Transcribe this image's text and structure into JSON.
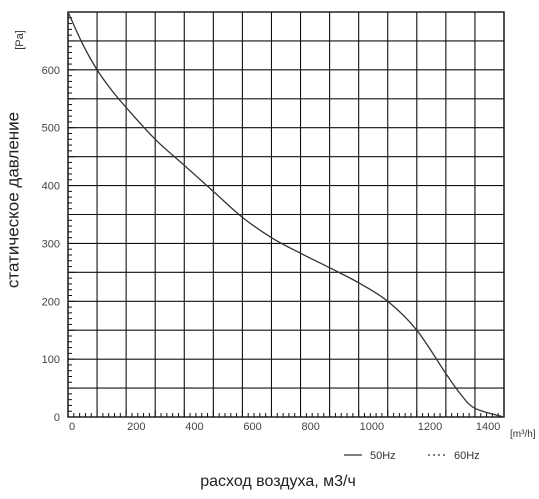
{
  "chart_data": {
    "type": "line",
    "ylabel": "статическое давление",
    "xlabel": "расход воздуха, м3/ч",
    "y_unit": "[Pa]",
    "x_unit": "[m³/h]",
    "xlim": [
      0,
      1500
    ],
    "ylim": [
      0,
      700
    ],
    "x_ticks": [
      0,
      200,
      400,
      600,
      800,
      1000,
      1200,
      1400
    ],
    "y_ticks": [
      0,
      100,
      200,
      300,
      400,
      500,
      600
    ],
    "x_gridlines_every": 100,
    "y_gridlines_every": 50,
    "grid": true,
    "legend_position": "bottom-right",
    "legend": [
      "50Hz",
      "60Hz"
    ],
    "series": [
      {
        "name": "50Hz",
        "line_style": "solid",
        "color": "#333333",
        "points": [
          [
            0,
            700
          ],
          [
            50,
            645
          ],
          [
            100,
            600
          ],
          [
            150,
            565
          ],
          [
            200,
            535
          ],
          [
            300,
            480
          ],
          [
            400,
            435
          ],
          [
            500,
            390
          ],
          [
            600,
            345
          ],
          [
            700,
            310
          ],
          [
            800,
            283
          ],
          [
            900,
            258
          ],
          [
            1000,
            232
          ],
          [
            1100,
            200
          ],
          [
            1200,
            150
          ],
          [
            1300,
            75
          ],
          [
            1350,
            40
          ],
          [
            1400,
            15
          ],
          [
            1500,
            0
          ]
        ]
      },
      {
        "name": "60Hz",
        "line_style": "dotted",
        "color": "#333333",
        "points": []
      }
    ]
  }
}
